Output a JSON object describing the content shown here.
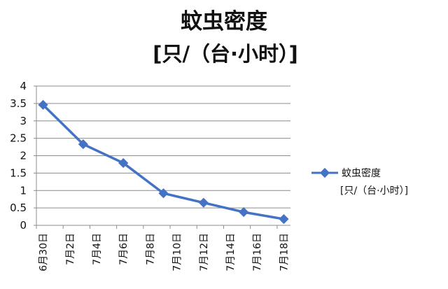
{
  "chart_data": {
    "type": "line",
    "title": "蚊虫密度",
    "subtitle": "[只/（台·小时）]",
    "xlabel": "",
    "ylabel": "",
    "x_tick_labels": [
      "6月30日",
      "7月2日",
      "7月4日",
      "7月6日",
      "7月8日",
      "7月10日",
      "7月12日",
      "7月14日",
      "7月16日",
      "7月18日"
    ],
    "y_tick_labels": [
      "0",
      "0.5",
      "1",
      "1.5",
      "2",
      "2.5",
      "3",
      "3.5",
      "4"
    ],
    "ylim": [
      0,
      4
    ],
    "xlim": [
      "6月30日",
      "7月18日"
    ],
    "grid": "horizontal",
    "legend_position": "right",
    "series": [
      {
        "name": "蚊虫密度",
        "name_line2": "[只/（台·小时）]",
        "color": "#4472C4",
        "marker": "diamond",
        "x": [
          "6月30日",
          "7月3日",
          "7月6日",
          "7月9日",
          "7月12日",
          "7月15日",
          "7月18日"
        ],
        "x_day_index": [
          0,
          3,
          6,
          9,
          12,
          15,
          18
        ],
        "values": [
          3.46,
          2.33,
          1.79,
          0.92,
          0.65,
          0.38,
          0.18
        ]
      }
    ]
  }
}
